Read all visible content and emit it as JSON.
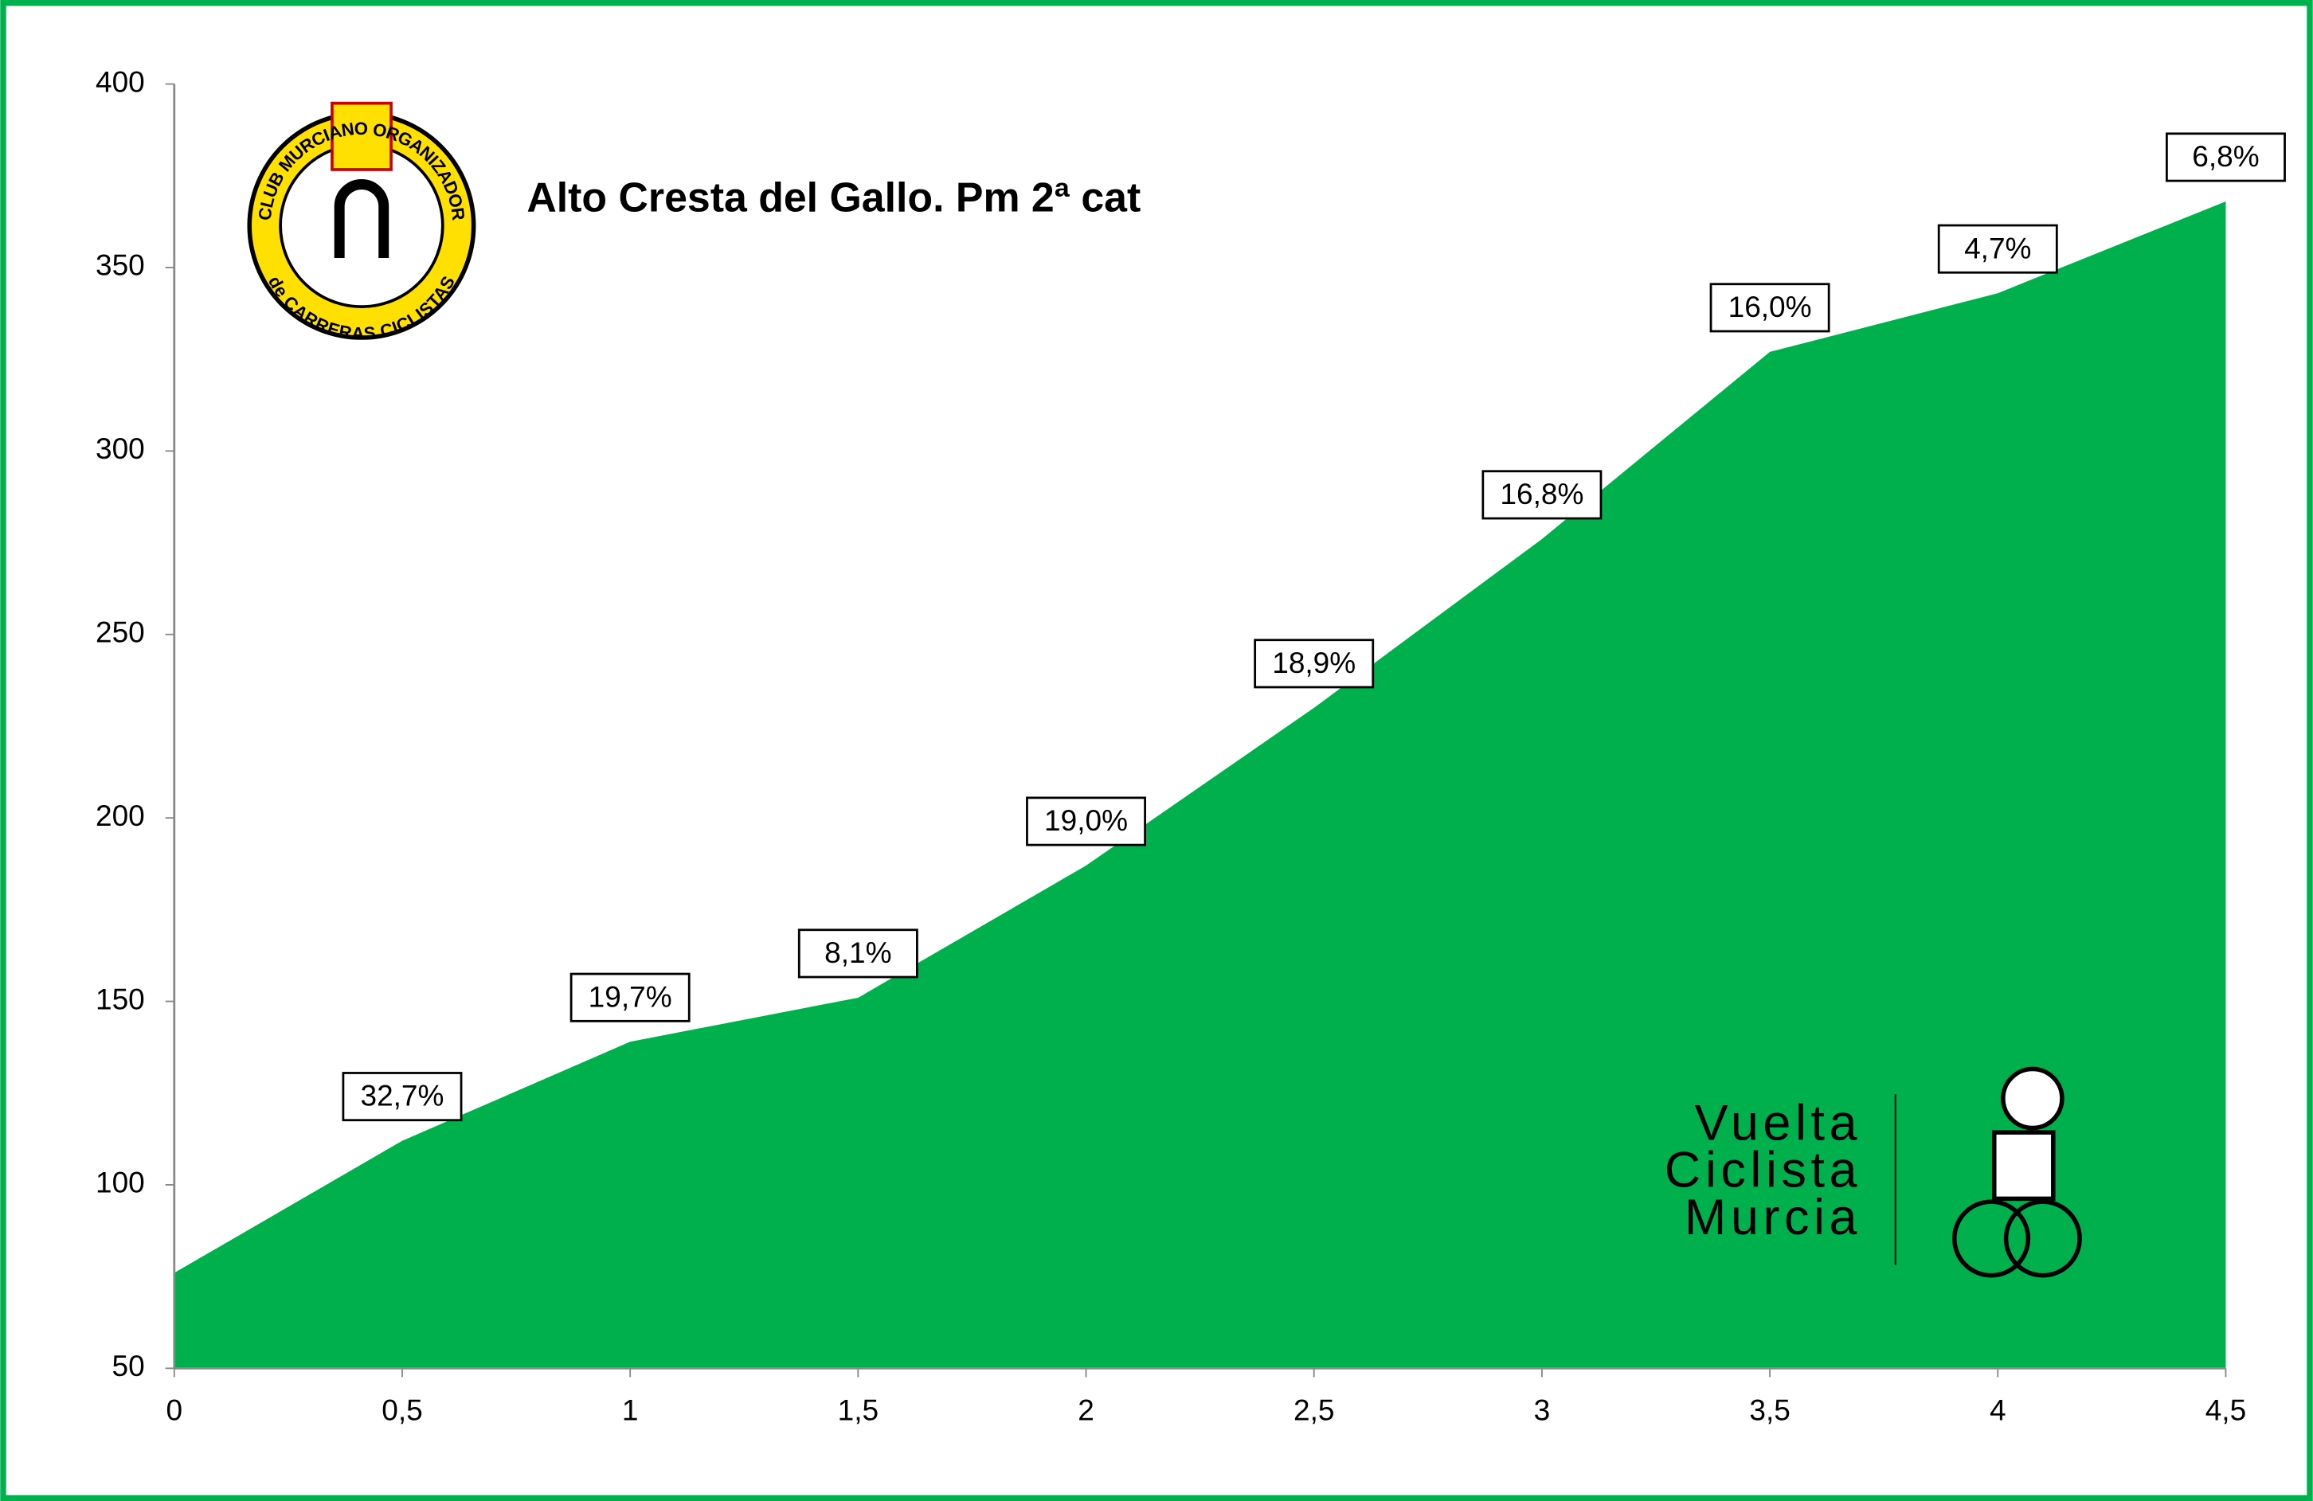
{
  "chart_data": {
    "type": "area",
    "title": "Alto Cresta del Gallo. Pm 2ª cat",
    "x": [
      0,
      0.5,
      1,
      1.5,
      2,
      2.5,
      3,
      3.5,
      4,
      4.5
    ],
    "series": [
      {
        "color": "#00b04c",
        "values": [
          76,
          112,
          139,
          151,
          187,
          230,
          276,
          327,
          343,
          368
        ]
      }
    ],
    "gradients": {
      "values": [
        32.7,
        19.7,
        8.1,
        19.0,
        18.9,
        16.8,
        16.0,
        4.7,
        6.8
      ],
      "value_labels": [
        "32,7%",
        "19,7%",
        "8,1%",
        "19,0%",
        "18,9%",
        "16,8%",
        "16,0%",
        "4,7%",
        "6,8%"
      ]
    },
    "xlim": [
      0,
      4.5
    ],
    "xticks": [
      0,
      {
        "value": 0.5,
        "label": "0,5"
      },
      1,
      {
        "value": 1.5,
        "label": "1,5"
      },
      2,
      {
        "value": 2.5,
        "label": "2,5"
      },
      3,
      {
        "value": 3.5,
        "label": "3,5"
      },
      4,
      {
        "value": 4.5,
        "label": "4,5"
      }
    ],
    "ylim": [
      50,
      400
    ],
    "yticks": [
      50,
      100,
      150,
      200,
      250,
      300,
      350,
      400
    ]
  },
  "logo": {
    "top": "CLUB MURCIANO ORGANIZADOR",
    "bottom": "de CARRERAS CICLISTAS"
  },
  "brand": [
    "Vuelta",
    "Ciclista",
    "Murcia"
  ]
}
